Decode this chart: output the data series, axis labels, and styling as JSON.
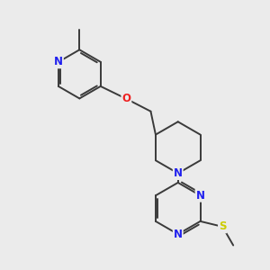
{
  "background_color": "#ebebeb",
  "bond_color": "#3a3a3a",
  "bond_width": 1.4,
  "atom_colors": {
    "N": "#2020ee",
    "O": "#ee2020",
    "S": "#cccc00"
  },
  "font_size": 8.5
}
